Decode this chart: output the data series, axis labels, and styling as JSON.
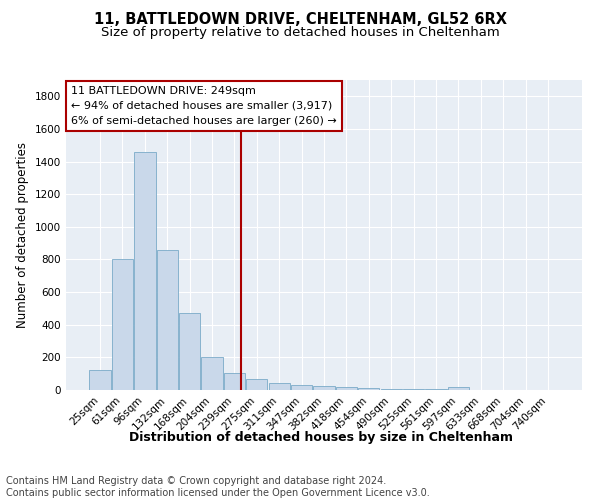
{
  "title1": "11, BATTLEDOWN DRIVE, CHELTENHAM, GL52 6RX",
  "title2": "Size of property relative to detached houses in Cheltenham",
  "xlabel": "Distribution of detached houses by size in Cheltenham",
  "ylabel": "Number of detached properties",
  "footer": "Contains HM Land Registry data © Crown copyright and database right 2024.\nContains public sector information licensed under the Open Government Licence v3.0.",
  "bar_labels": [
    "25sqm",
    "61sqm",
    "96sqm",
    "132sqm",
    "168sqm",
    "204sqm",
    "239sqm",
    "275sqm",
    "311sqm",
    "347sqm",
    "382sqm",
    "418sqm",
    "454sqm",
    "490sqm",
    "525sqm",
    "561sqm",
    "597sqm",
    "633sqm",
    "668sqm",
    "704sqm",
    "740sqm"
  ],
  "bar_values": [
    120,
    800,
    1460,
    860,
    470,
    200,
    105,
    70,
    45,
    30,
    25,
    20,
    10,
    5,
    5,
    5,
    18,
    0,
    0,
    0,
    0
  ],
  "bar_color": "#c9d8ea",
  "bar_edgecolor": "#7aaac8",
  "vline_color": "#aa0000",
  "vline_pos": 6.28,
  "annotation_text": "11 BATTLEDOWN DRIVE: 249sqm\n← 94% of detached houses are smaller (3,917)\n6% of semi-detached houses are larger (260) →",
  "annotation_box_color": "#ffffff",
  "annotation_box_edgecolor": "#aa0000",
  "ylim": [
    0,
    1900
  ],
  "yticks": [
    0,
    200,
    400,
    600,
    800,
    1000,
    1200,
    1400,
    1600,
    1800
  ],
  "bg_color": "#e8eef5",
  "title1_fontsize": 10.5,
  "title2_fontsize": 9.5,
  "xlabel_fontsize": 9,
  "ylabel_fontsize": 8.5,
  "footer_fontsize": 7,
  "tick_fontsize": 7.5,
  "annot_fontsize": 8
}
